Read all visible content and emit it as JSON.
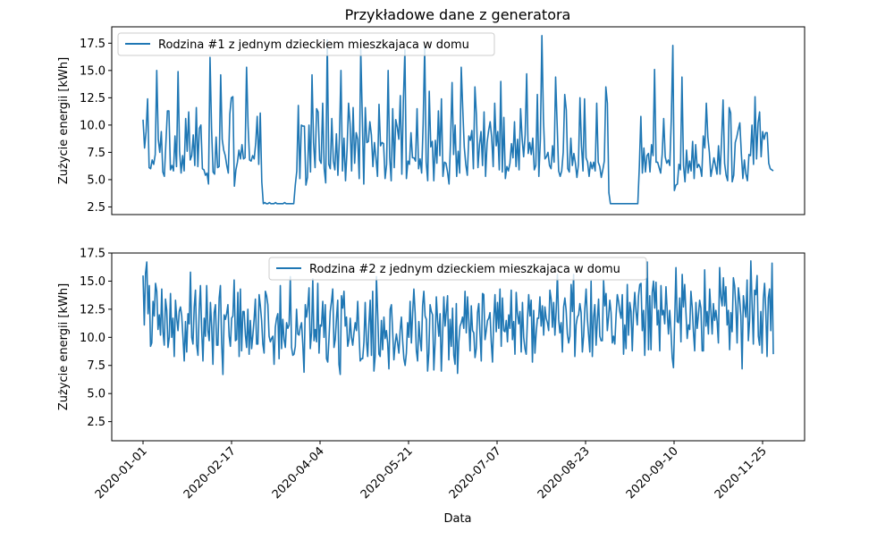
{
  "chart_data": {
    "type": "line",
    "title": "Przykładowe dane z generatora",
    "xlabel": "Data",
    "x_tick_labels": [
      "2020-01-01",
      "2020-02-17",
      "2020-04-04",
      "2020-05-21",
      "2020-07-07",
      "2020-08-23",
      "2020-09-10",
      "2020-11-25"
    ],
    "x_start": "2020-01-01",
    "x_end": "2020-11-29",
    "grid": false,
    "line_color": "#1f77b4",
    "panels": [
      {
        "ylabel": "Zużycie energii [kWh]",
        "ylim": [
          1.8,
          19.0
        ],
        "yticks": [
          "2.5",
          "5.0",
          "7.5",
          "10.0",
          "12.5",
          "15.0",
          "17.5"
        ],
        "legend_placement": "upper-left",
        "series": [
          {
            "name": "Rodzina #1 z jednym dzieckiem mieszkajaca w domu",
            "values": [
              10.5,
              7.9,
              9.4,
              12.4,
              6.1,
              6.0,
              6.8,
              6.4,
              7.3,
              15.0,
              8.7,
              7.5,
              9.4,
              5.7,
              5.3,
              8.3,
              11.3,
              11.3,
              5.9,
              6.3,
              5.8,
              9.0,
              6.2,
              14.9,
              7.6,
              5.6,
              7.2,
              5.8,
              10.6,
              7.6,
              11.2,
              6.8,
              7.2,
              9.1,
              6.3,
              11.6,
              6.2,
              9.7,
              10.0,
              6.0,
              5.9,
              5.4,
              5.6,
              4.6,
              16.2,
              9.7,
              5.7,
              5.5,
              8.9,
              6.1,
              6.2,
              14.6,
              8.7,
              7.7,
              7.2,
              6.3,
              5.6,
              11.0,
              12.5,
              12.6,
              4.4,
              5.9,
              6.6,
              7.7,
              6.9,
              8.2,
              6.9,
              7.0,
              15.3,
              9.9,
              6.8,
              6.7,
              7.2,
              6.9,
              8.3,
              10.8,
              6.4,
              11.1,
              4.8,
              2.8,
              2.9,
              2.8,
              2.8,
              2.9,
              2.8,
              2.8,
              2.8,
              2.9,
              2.8,
              2.8,
              2.8,
              2.8,
              2.8,
              2.9,
              2.8,
              2.8,
              2.8,
              2.8,
              2.8,
              2.8,
              4.5,
              5.8,
              11.8,
              5.1,
              10.0,
              9.9,
              9.9,
              4.5,
              5.2,
              10.0,
              5.7,
              14.6,
              8.4,
              6.1,
              11.5,
              11.2,
              6.8,
              6.5,
              12.0,
              6.0,
              4.7,
              17.8,
              6.4,
              6.0,
              10.6,
              6.7,
              5.9,
              9.2,
              5.4,
              8.8,
              15.0,
              5.8,
              8.8,
              4.9,
              7.7,
              12.0,
              10.1,
              5.8,
              11.6,
              6.5,
              9.3,
              8.7,
              5.1,
              16.9,
              10.9,
              4.6,
              11.6,
              8.4,
              8.5,
              10.3,
              9.1,
              6.2,
              8.4,
              7.0,
              5.3,
              11.9,
              8.1,
              8.4,
              8.3,
              5.1,
              6.4,
              15.0,
              7.1,
              4.9,
              11.5,
              6.1,
              10.5,
              9.8,
              8.7,
              12.7,
              5.5,
              12.2,
              16.9,
              5.1,
              6.7,
              6.4,
              9.3,
              7.0,
              7.0,
              6.7,
              11.5,
              6.0,
              6.9,
              5.6,
              10.1,
              17.2,
              6.6,
              4.9,
              13.1,
              8.0,
              8.5,
              4.9,
              8.6,
              6.5,
              11.3,
              7.2,
              12.4,
              5.3,
              6.6,
              6.5,
              5.7,
              4.6,
              8.6,
              13.9,
              7.3,
              10.0,
              5.3,
              7.6,
              5.6,
              15.3,
              11.5,
              8.0,
              6.4,
              5.4,
              9.0,
              8.6,
              9.5,
              6.0,
              13.5,
              10.9,
              6.1,
              8.2,
              9.4,
              6.3,
              11.2,
              5.3,
              8.4,
              9.5,
              10.3,
              8.9,
              6.2,
              12.0,
              8.1,
              9.4,
              5.9,
              14.0,
              5.7,
              10.7,
              5.1,
              6.2,
              5.8,
              6.5,
              8.3,
              7.0,
              10.3,
              6.2,
              8.7,
              5.9,
              11.5,
              8.8,
              7.1,
              9.1,
              14.7,
              7.4,
              8.4,
              7.3,
              8.8,
              5.9,
              6.3,
              12.8,
              5.3,
              8.7,
              18.2,
              10.6,
              6.9,
              7.1,
              7.5,
              6.3,
              6.0,
              8.1,
              6.6,
              14.4,
              10.1,
              5.8,
              5.3,
              5.8,
              7.5,
              12.8,
              11.4,
              6.0,
              5.7,
              8.8,
              6.3,
              7.4,
              6.5,
              5.2,
              6.4,
              12.5,
              8.1,
              5.8,
              12.4,
              7.0,
              6.6,
              5.3,
              6.6,
              6.0,
              6.6,
              5.8,
              12.0,
              6.6,
              6.2,
              5.2,
              5.9,
              6.7,
              13.5,
              12.0,
              3.8,
              2.8,
              2.8,
              2.8,
              2.8,
              2.8,
              2.8,
              2.8,
              2.8,
              2.8,
              2.8,
              2.8,
              2.8,
              2.8,
              2.8,
              2.8,
              2.8,
              2.8,
              2.8,
              2.8,
              6.2,
              10.8,
              5.6,
              7.9,
              5.7,
              7.2,
              7.4,
              5.7,
              8.2,
              7.2,
              15.1,
              6.6,
              6.6,
              6.1,
              5.6,
              7.3,
              10.6,
              7.1,
              6.5,
              6.8,
              6.3,
              10.6,
              17.3,
              4.0,
              4.5,
              4.6,
              6.4,
              5.9,
              14.4,
              6.3,
              4.8,
              7.7,
              5.6,
              6.7,
              5.8,
              8.5,
              5.1,
              8.2,
              6.1,
              6.4,
              6.1,
              5.3,
              9.0,
              7.9,
              12.0,
              8.9,
              7.5,
              5.3,
              6.1,
              7.0,
              6.3,
              5.5,
              8.1,
              5.5,
              8.5,
              12.3,
              6.5,
              5.4,
              4.9,
              11.6,
              11.1,
              4.8,
              5.4,
              8.4,
              8.9,
              9.6,
              10.2,
              7.4,
              5.1,
              6.8,
              5.5,
              4.9,
              7.3,
              7.2,
              10.0,
              6.4,
              12.6,
              6.9,
              10.2,
              11.2,
              7.1,
              9.4,
              8.7,
              9.3,
              9.3,
              6.5,
              6.0,
              5.9,
              5.8
            ]
          }
        ]
      },
      {
        "ylabel": "Zużycie energii [kWh]",
        "ylim": [
          0.8,
          17.5
        ],
        "yticks": [
          "2.5",
          "5.0",
          "7.5",
          "10.0",
          "12.5",
          "15.0",
          "17.5"
        ],
        "legend_placement": "upper-center",
        "series": [
          {
            "name": "Rodzina #2 z jednym dzieckiem mieszkajaca w domu",
            "values": [
              15.5,
              11.1,
              15.7,
              16.7,
              12.1,
              14.6,
              9.2,
              9.5,
              13.2,
              11.9,
              14.8,
              14.1,
              10.7,
              12.0,
              10.2,
              14.3,
              10.5,
              9.3,
              13.4,
              12.4,
              9.1,
              10.0,
              13.9,
              10.0,
              11.7,
              8.3,
              13.3,
              11.7,
              10.6,
              12.3,
              12.7,
              11.9,
              10.0,
              7.9,
              11.4,
              8.7,
              12.1,
              11.2,
              15.8,
              10.0,
              9.4,
              12.7,
              14.2,
              9.3,
              8.4,
              12.4,
              14.6,
              10.6,
              7.9,
              11.7,
              10.1,
              14.6,
              10.6,
              9.7,
              13.1,
              10.9,
              7.6,
              12.2,
              12.9,
              9.3,
              9.3,
              13.5,
              14.6,
              9.5,
              6.7,
              12.0,
              11.6,
              12.1,
              12.9,
              10.1,
              9.2,
              11.7,
              11.9,
              15.1,
              9.7,
              9.8,
              14.0,
              8.3,
              14.3,
              8.8,
              12.3,
              12.3,
              10.2,
              9.1,
              12.5,
              8.5,
              11.5,
              9.0,
              10.2,
              11.6,
              13.4,
              9.4,
              9.4,
              13.8,
              12.8,
              11.5,
              9.4,
              8.6,
              14.1,
              13.7,
              12.9,
              10.1,
              9.6,
              9.9,
              10.1,
              7.6,
              10.9,
              11.7,
              12.1,
              8.1,
              14.6,
              9.0,
              11.6,
              9.8,
              9.1,
              11.3,
              10.8,
              11.1,
              15.4,
              9.1,
              8.4,
              8.5,
              9.2,
              12.5,
              10.3,
              10.2,
              10.9,
              11.3,
              9.4,
              6.9,
              12.9,
              11.8,
              12.7,
              14.4,
              9.0,
              10.4,
              15.2,
              9.7,
              10.7,
              9.6,
              14.8,
              8.6,
              11.1,
              11.0,
              13.2,
              10.0,
              12.9,
              8.1,
              7.8,
              9.9,
              12.3,
              13.2,
              14.3,
              9.1,
              9.8,
              11.7,
              13.3,
              7.6,
              6.7,
              13.7,
              12.6,
              14.1,
              11.0,
              11.8,
              9.2,
              9.8,
              11.7,
              10.0,
              9.3,
              10.4,
              11.3,
              10.6,
              13.2,
              10.5,
              7.9,
              8.1,
              8.1,
              9.6,
              13.1,
              9.7,
              8.3,
              11.2,
              13.3,
              8.4,
              14.1,
              7.0,
              8.3,
              15.4,
              12.1,
              8.5,
              8.3,
              11.5,
              8.9,
              11.8,
              9.9,
              10.6,
              9.5,
              7.2,
              12.5,
              12.9,
              10.5,
              8.0,
              9.4,
              10.3,
              9.5,
              8.6,
              10.6,
              11.8,
              9.7,
              8.1,
              7.5,
              8.6,
              11.3,
              10.0,
              13.2,
              9.5,
              12.1,
              14.3,
              12.2,
              8.8,
              7.9,
              11.4,
              9.8,
              8.8,
              12.8,
              14.1,
              11.9,
              11.6,
              7.0,
              8.6,
              12.9,
              12.3,
              12.0,
              7.1,
              9.5,
              13.6,
              11.5,
              10.1,
              12.1,
              7.0,
              10.1,
              13.6,
              11.0,
              12.3,
              13.7,
              8.0,
              11.6,
              9.2,
              12.6,
              8.4,
              7.6,
              13.0,
              6.8,
              9.6,
              11.0,
              11.3,
              11.8,
              10.8,
              14.1,
              10.4,
              13.6,
              11.5,
              8.8,
              12.8,
              10.6,
              10.4,
              8.2,
              9.0,
              12.2,
              13.0,
              10.3,
              7.9,
              13.9,
              13.8,
              9.8,
              10.6,
              11.5,
              11.7,
              12.2,
              9.6,
              7.8,
              11.6,
              13.8,
              10.5,
              13.1,
              10.8,
              14.3,
              9.2,
              13.5,
              10.6,
              10.5,
              11.5,
              9.6,
              12.0,
              10.8,
              14.2,
              9.8,
              11.4,
              8.5,
              14.0,
              12.1,
              11.2,
              12.3,
              8.7,
              13.1,
              10.0,
              9.0,
              8.5,
              11.6,
              13.8,
              11.9,
              13.3,
              7.8,
              12.4,
              8.6,
              10.4,
              11.7,
              11.7,
              13.6,
              11.0,
              12.8,
              10.2,
              12.7,
              11.7,
              11.3,
              10.6,
              14.2,
              13.4,
              10.9,
              13.1,
              10.2,
              12.3,
              15.6,
              11.6,
              10.4,
              11.3,
              8.7,
              12.7,
              13.5,
              12.4,
              10.3,
              9.5,
              10.1,
              14.7,
              12.3,
              15.6,
              8.3,
              11.1,
              11.8,
              12.0,
              13.0,
              12.2,
              8.7,
              10.1,
              12.6,
              14.3,
              11.7,
              10.2,
              8.7,
              15.0,
              8.3,
              11.8,
              12.9,
              9.3,
              11.5,
              13.4,
              10.1,
              9.7,
              9.7,
              15.1,
              12.8,
              13.9,
              10.6,
              11.8,
              13.3,
              12.2,
              9.5,
              10.1,
              9.4,
              11.9,
              13.8,
              13.2,
              12.3,
              11.7,
              13.8,
              8.5,
              11.1,
              9.0,
              14.7,
              10.2,
              13.1,
              12.3,
              8.8,
              12.2,
              14.0,
              12.3,
              11.1,
              13.7,
              14.7,
              14.8,
              10.6,
              12.4,
              8.4,
              12.4,
              16.7,
              8.9,
              13.7,
              8.9,
              14.0,
              15.0,
              12.6,
              14.9,
              11.1,
              12.4,
              8.8,
              14.6,
              12.0,
              12.4,
              11.2,
              14.5,
              12.3,
              10.3,
              12.4,
              10.6,
              8.2,
              7.3,
              11.6,
              16.2,
              11.4,
              11.3,
              13.5,
              9.6,
              15.6,
              12.7,
              14.7,
              12.2,
              9.9,
              11.1,
              10.7,
              14.1,
              12.7,
              10.5,
              8.8,
              13.1,
              10.8,
              12.0,
              13.3,
              12.6,
              8.8,
              8.8,
              16.0,
              11.0,
              12.3,
              10.3,
              14.3,
              12.3,
              10.3,
              13.0,
              11.5,
              12.4,
              11.4,
              9.5,
              16.2,
              13.6,
              12.8,
              15.3,
              12.8,
              14.5,
              11.1,
              12.4,
              8.9,
              12.2,
              10.5,
              15.3,
              14.6,
              12.7,
              9.5,
              14.4,
              13.4,
              11.9,
              7.2,
              13.7,
              12.7,
              11.8,
              15.1,
              9.7,
              11.5,
              16.8,
              12.9,
              9.4,
              14.2,
              13.8,
              15.5,
              10.1,
              9.3,
              12.3,
              8.6,
              13.4,
              14.8,
              12.3,
              8.3,
              13.5,
              14.3,
              10.6,
              16.6,
              8.5
            ]
          }
        ]
      }
    ]
  }
}
